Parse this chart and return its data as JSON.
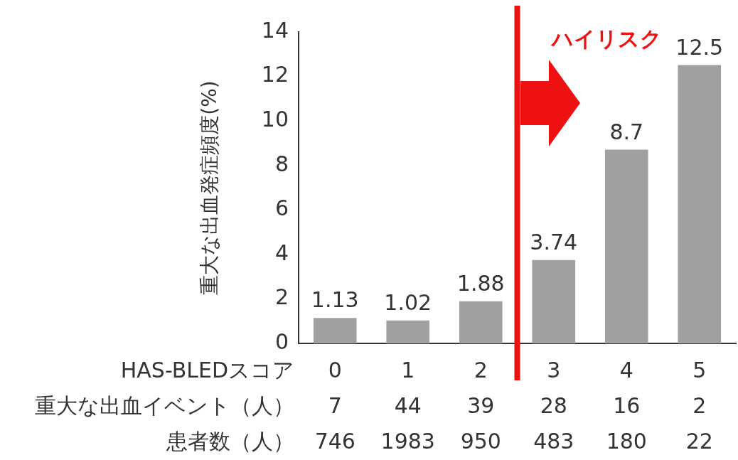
{
  "chart_data": {
    "type": "bar",
    "ylabel": "重大な出血発症頻度(%)",
    "xlabel": "HAS-BLEDスコア",
    "x": [
      0,
      1,
      2,
      3,
      4,
      5
    ],
    "values": [
      1.13,
      1.02,
      1.88,
      3.74,
      8.7,
      12.5
    ],
    "color": "#a0a0a0",
    "xlim": [
      -0.5,
      5.5
    ],
    "xticks": [
      0,
      1,
      2,
      3,
      4,
      5
    ],
    "ylim": [
      0,
      14
    ],
    "yticks": [
      0,
      2,
      4,
      6,
      8,
      10,
      12,
      14
    ],
    "data_labels": true,
    "ref_lines": [
      {
        "axis": "x",
        "value": 2.5,
        "label": "ハイリスク",
        "color": "#ee1111"
      }
    ],
    "annotations": [
      "重大な出血イベント（人）",
      "7",
      "44",
      "39",
      "28",
      "16",
      "2",
      "患者数（人）",
      "746",
      "1983",
      "950",
      "483",
      "180",
      "22"
    ]
  }
}
